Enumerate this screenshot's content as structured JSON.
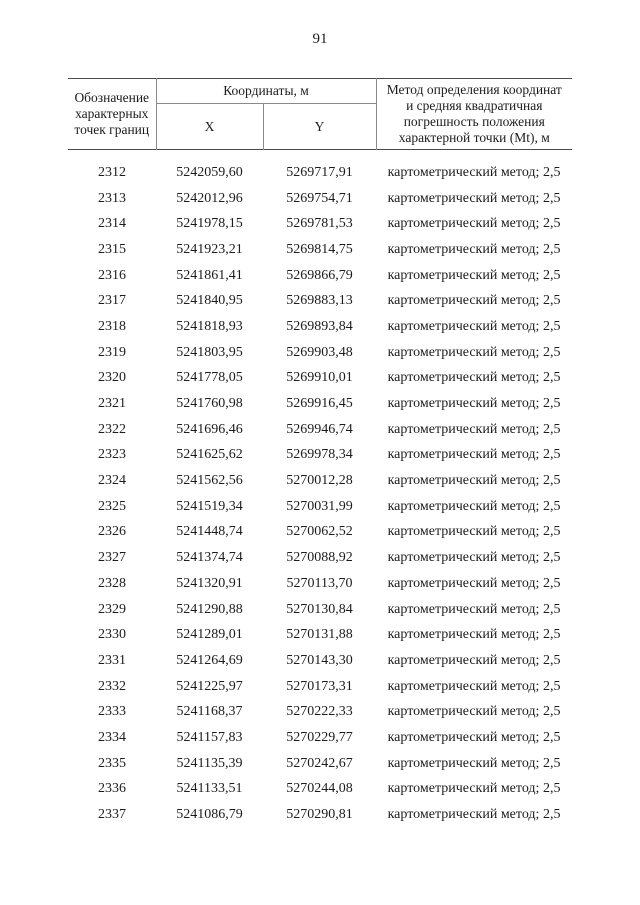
{
  "page_number": "91",
  "table": {
    "headers": {
      "designation": "Обозначение характерных точек границ",
      "coordinates": "Координаты, м",
      "x": "X",
      "y": "Y",
      "method": "Метод определения координат и средняя квадратичная погрешность положения характерной точки (Mt), м"
    },
    "rows": [
      {
        "n": "2312",
        "x": "5242059,60",
        "y": "5269717,91",
        "method": "картометрический метод; 2,5"
      },
      {
        "n": "2313",
        "x": "5242012,96",
        "y": "5269754,71",
        "method": "картометрический метод; 2,5"
      },
      {
        "n": "2314",
        "x": "5241978,15",
        "y": "5269781,53",
        "method": "картометрический метод; 2,5"
      },
      {
        "n": "2315",
        "x": "5241923,21",
        "y": "5269814,75",
        "method": "картометрический метод; 2,5"
      },
      {
        "n": "2316",
        "x": "5241861,41",
        "y": "5269866,79",
        "method": "картометрический метод; 2,5"
      },
      {
        "n": "2317",
        "x": "5241840,95",
        "y": "5269883,13",
        "method": "картометрический метод; 2,5"
      },
      {
        "n": "2318",
        "x": "5241818,93",
        "y": "5269893,84",
        "method": "картометрический метод; 2,5"
      },
      {
        "n": "2319",
        "x": "5241803,95",
        "y": "5269903,48",
        "method": "картометрический метод; 2,5"
      },
      {
        "n": "2320",
        "x": "5241778,05",
        "y": "5269910,01",
        "method": "картометрический метод; 2,5"
      },
      {
        "n": "2321",
        "x": "5241760,98",
        "y": "5269916,45",
        "method": "картометрический метод; 2,5"
      },
      {
        "n": "2322",
        "x": "5241696,46",
        "y": "5269946,74",
        "method": "картометрический метод; 2,5"
      },
      {
        "n": "2323",
        "x": "5241625,62",
        "y": "5269978,34",
        "method": "картометрический метод; 2,5"
      },
      {
        "n": "2324",
        "x": "5241562,56",
        "y": "5270012,28",
        "method": "картометрический метод; 2,5"
      },
      {
        "n": "2325",
        "x": "5241519,34",
        "y": "5270031,99",
        "method": "картометрический метод; 2,5"
      },
      {
        "n": "2326",
        "x": "5241448,74",
        "y": "5270062,52",
        "method": "картометрический метод; 2,5"
      },
      {
        "n": "2327",
        "x": "5241374,74",
        "y": "5270088,92",
        "method": "картометрический метод; 2,5"
      },
      {
        "n": "2328",
        "x": "5241320,91",
        "y": "5270113,70",
        "method": "картометрический метод; 2,5"
      },
      {
        "n": "2329",
        "x": "5241290,88",
        "y": "5270130,84",
        "method": "картометрический метод; 2,5"
      },
      {
        "n": "2330",
        "x": "5241289,01",
        "y": "5270131,88",
        "method": "картометрический метод; 2,5"
      },
      {
        "n": "2331",
        "x": "5241264,69",
        "y": "5270143,30",
        "method": "картометрический метод; 2,5"
      },
      {
        "n": "2332",
        "x": "5241225,97",
        "y": "5270173,31",
        "method": "картометрический метод; 2,5"
      },
      {
        "n": "2333",
        "x": "5241168,37",
        "y": "5270222,33",
        "method": "картометрический метод; 2,5"
      },
      {
        "n": "2334",
        "x": "5241157,83",
        "y": "5270229,77",
        "method": "картометрический метод; 2,5"
      },
      {
        "n": "2335",
        "x": "5241135,39",
        "y": "5270242,67",
        "method": "картометрический метод; 2,5"
      },
      {
        "n": "2336",
        "x": "5241133,51",
        "y": "5270244,08",
        "method": "картометрический метод; 2,5"
      },
      {
        "n": "2337",
        "x": "5241086,79",
        "y": "5270290,81",
        "method": "картометрический метод; 2,5"
      }
    ]
  }
}
